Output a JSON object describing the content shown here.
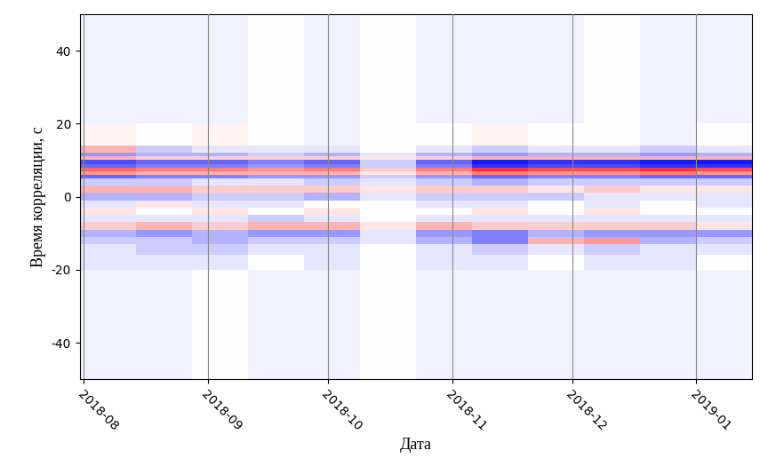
{
  "chart_data": {
    "type": "heatmap",
    "xlabel": "Дата",
    "ylabel": "Время корреляции, с",
    "color": "bwr",
    "grid": "x",
    "xlim": [
      -1,
      167
    ],
    "xticks": [
      {
        "value": 0,
        "label": "2018-08"
      },
      {
        "value": 31,
        "label": "2018-09"
      },
      {
        "value": 61,
        "label": "2018-10"
      },
      {
        "value": 92,
        "label": "2018-11"
      },
      {
        "value": 122,
        "label": "2018-12"
      },
      {
        "value": 153,
        "label": "2019-01"
      }
    ],
    "ylim": [
      -50,
      50
    ],
    "yticks": [
      -40,
      -20,
      0,
      20,
      40
    ],
    "zlim": [
      -1,
      1
    ],
    "x_edges": [
      -1,
      13,
      27,
      41,
      55,
      69,
      83,
      97,
      111,
      125,
      139,
      153,
      167
    ],
    "y_edges": [
      -50,
      -20,
      -16,
      -13,
      -11,
      -9,
      -7,
      -5,
      -3,
      -1,
      1,
      3,
      5,
      6,
      7,
      8,
      9,
      10,
      11,
      12,
      14,
      20,
      50
    ],
    "cells": [
      [
        -0.05,
        -0.05,
        0.0,
        -0.05,
        -0.05,
        0.0,
        -0.05,
        -0.05,
        -0.05,
        -0.05,
        -0.05,
        -0.05
      ],
      [
        -0.1,
        -0.1,
        -0.1,
        0.0,
        -0.1,
        0.0,
        -0.1,
        -0.1,
        0.0,
        -0.1,
        -0.1,
        0.0
      ],
      [
        -0.1,
        -0.2,
        -0.2,
        -0.1,
        -0.1,
        0.0,
        -0.1,
        -0.2,
        -0.1,
        -0.2,
        -0.1,
        -0.1
      ],
      [
        -0.2,
        -0.2,
        -0.3,
        -0.2,
        -0.2,
        -0.1,
        -0.3,
        -0.5,
        0.3,
        0.4,
        -0.3,
        -0.2
      ],
      [
        -0.3,
        -0.4,
        -0.3,
        -0.4,
        -0.4,
        -0.1,
        -0.4,
        -0.5,
        -0.3,
        -0.4,
        -0.4,
        -0.4
      ],
      [
        0.2,
        0.3,
        0.2,
        0.3,
        0.3,
        0.1,
        0.3,
        0.2,
        0.2,
        0.2,
        0.2,
        0.1
      ],
      [
        -0.1,
        -0.1,
        -0.1,
        -0.2,
        -0.1,
        0.0,
        -0.1,
        -0.1,
        -0.1,
        -0.1,
        -0.1,
        -0.1
      ],
      [
        0.1,
        0.0,
        0.1,
        0.0,
        0.1,
        0.0,
        0.0,
        0.1,
        0.0,
        0.1,
        0.0,
        0.0
      ],
      [
        -0.1,
        0.1,
        -0.1,
        -0.1,
        0.0,
        0.0,
        -0.1,
        -0.1,
        0.0,
        -0.1,
        0.0,
        -0.1
      ],
      [
        -0.3,
        -0.3,
        -0.2,
        -0.2,
        -0.3,
        -0.1,
        -0.2,
        -0.2,
        -0.2,
        -0.1,
        -0.1,
        -0.1
      ],
      [
        0.3,
        0.3,
        0.2,
        0.2,
        0.2,
        0.1,
        0.2,
        0.2,
        0.1,
        0.2,
        0.1,
        0.1
      ],
      [
        -0.2,
        -0.2,
        -0.1,
        -0.1,
        -0.2,
        -0.1,
        -0.2,
        -0.3,
        -0.2,
        -0.2,
        -0.2,
        -0.2
      ],
      [
        -0.6,
        -0.5,
        -0.5,
        -0.4,
        -0.4,
        -0.2,
        -0.4,
        -0.6,
        -0.5,
        -0.5,
        -0.6,
        -0.6
      ],
      [
        0.4,
        0.3,
        0.3,
        0.3,
        0.3,
        0.1,
        0.3,
        0.5,
        0.4,
        0.4,
        0.5,
        0.4
      ],
      [
        0.6,
        0.5,
        0.5,
        0.4,
        0.5,
        0.2,
        0.5,
        0.8,
        0.7,
        0.7,
        0.8,
        0.7
      ],
      [
        -0.6,
        -0.5,
        -0.5,
        -0.4,
        -0.5,
        -0.2,
        -0.5,
        -0.8,
        -0.7,
        -0.7,
        -0.8,
        -0.8
      ],
      [
        -0.7,
        -0.6,
        -0.6,
        -0.5,
        -0.6,
        -0.2,
        -0.6,
        -0.9,
        -0.8,
        -0.8,
        -0.9,
        -0.9
      ],
      [
        0.3,
        0.2,
        0.2,
        0.2,
        0.2,
        0.1,
        0.2,
        0.3,
        0.3,
        0.3,
        0.3,
        0.3
      ],
      [
        -0.4,
        -0.3,
        -0.3,
        -0.2,
        -0.3,
        -0.1,
        -0.3,
        -0.4,
        -0.3,
        -0.3,
        -0.4,
        -0.3
      ],
      [
        0.3,
        -0.2,
        -0.1,
        -0.1,
        -0.1,
        0.0,
        -0.1,
        -0.2,
        -0.1,
        -0.1,
        -0.2,
        -0.1
      ],
      [
        0.05,
        0.0,
        0.05,
        0.0,
        -0.05,
        0.0,
        0.0,
        0.05,
        0.0,
        0.0,
        -0.05,
        0.0
      ],
      [
        -0.05,
        -0.05,
        -0.05,
        0.0,
        -0.05,
        0.0,
        -0.05,
        -0.05,
        -0.05,
        0.0,
        -0.05,
        -0.05
      ]
    ]
  }
}
